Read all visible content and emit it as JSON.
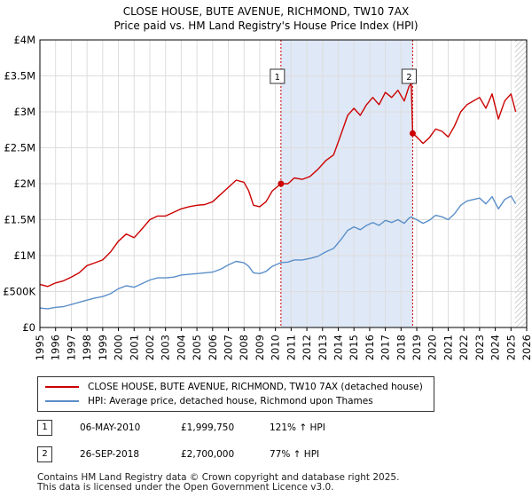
{
  "chart_data": {
    "type": "line",
    "title": "CLOSE HOUSE, BUTE AVENUE, RICHMOND, TW10 7AX",
    "subtitle": "Price paid vs. HM Land Registry's House Price Index (HPI)",
    "xlim": [
      1995,
      2026
    ],
    "ylim": [
      0,
      4000000
    ],
    "x_ticks": [
      "1995",
      "1996",
      "1997",
      "1998",
      "1999",
      "2000",
      "2001",
      "2002",
      "2003",
      "2004",
      "2005",
      "2006",
      "2007",
      "2008",
      "2009",
      "2010",
      "2011",
      "2012",
      "2013",
      "2014",
      "2015",
      "2016",
      "2017",
      "2018",
      "2019",
      "2020",
      "2021",
      "2022",
      "2023",
      "2024",
      "2025",
      "2026"
    ],
    "y_ticks": [
      {
        "value": 0,
        "label": "£0"
      },
      {
        "value": 500000,
        "label": "£500K"
      },
      {
        "value": 1000000,
        "label": "£1M"
      },
      {
        "value": 1500000,
        "label": "£1.5M"
      },
      {
        "value": 2000000,
        "label": "£2M"
      },
      {
        "value": 2500000,
        "label": "£2.5M"
      },
      {
        "value": 3000000,
        "label": "£3M"
      },
      {
        "value": 3500000,
        "label": "£3.5M"
      },
      {
        "value": 4000000,
        "label": "£4M"
      }
    ],
    "grid": true,
    "shaded_period": [
      2010.35,
      2018.74
    ],
    "projection_start": 2025.25,
    "series": [
      {
        "name": "CLOSE HOUSE, BUTE AVENUE, RICHMOND, TW10 7AX (detached house)",
        "color": "#cc0000",
        "x": [
          1995.0,
          1995.5,
          1996.0,
          1996.5,
          1997.0,
          1997.5,
          1998.0,
          1998.5,
          1999.0,
          1999.5,
          2000.0,
          2000.5,
          2001.0,
          2001.5,
          2002.0,
          2002.5,
          2003.0,
          2003.5,
          2004.0,
          2004.5,
          2005.0,
          2005.5,
          2006.0,
          2006.5,
          2007.0,
          2007.5,
          2008.0,
          2008.3,
          2008.6,
          2009.0,
          2009.4,
          2009.8,
          2010.35,
          2010.8,
          2011.2,
          2011.7,
          2012.2,
          2012.7,
          2013.2,
          2013.7,
          2014.2,
          2014.6,
          2015.0,
          2015.4,
          2015.8,
          2016.2,
          2016.6,
          2017.0,
          2017.4,
          2017.8,
          2018.2,
          2018.5,
          2018.65,
          2018.74,
          2019.0,
          2019.4,
          2019.8,
          2020.2,
          2020.6,
          2021.0,
          2021.4,
          2021.8,
          2022.2,
          2022.6,
          2023.0,
          2023.4,
          2023.8,
          2024.2,
          2024.6,
          2025.0,
          2025.3
        ],
        "values": [
          600000,
          570000,
          620000,
          650000,
          700000,
          760000,
          860000,
          900000,
          940000,
          1050000,
          1200000,
          1300000,
          1250000,
          1370000,
          1500000,
          1550000,
          1550000,
          1600000,
          1650000,
          1680000,
          1700000,
          1710000,
          1750000,
          1850000,
          1950000,
          2050000,
          2020000,
          1900000,
          1700000,
          1680000,
          1750000,
          1900000,
          1999750,
          2000000,
          2080000,
          2060000,
          2100000,
          2200000,
          2320000,
          2400000,
          2700000,
          2950000,
          3050000,
          2950000,
          3100000,
          3200000,
          3100000,
          3270000,
          3200000,
          3300000,
          3150000,
          3350000,
          3400000,
          2700000,
          2650000,
          2560000,
          2640000,
          2760000,
          2730000,
          2650000,
          2800000,
          3000000,
          3100000,
          3150000,
          3200000,
          3050000,
          3250000,
          2900000,
          3150000,
          3250000,
          3000000
        ]
      },
      {
        "name": "HPI: Average price, detached house, Richmond upon Thames",
        "color": "#5b8fc9",
        "x": [
          1995.0,
          1995.5,
          1996.0,
          1996.5,
          1997.0,
          1997.5,
          1998.0,
          1998.5,
          1999.0,
          1999.5,
          2000.0,
          2000.5,
          2001.0,
          2001.5,
          2002.0,
          2002.5,
          2003.0,
          2003.5,
          2004.0,
          2004.5,
          2005.0,
          2005.5,
          2006.0,
          2006.5,
          2007.0,
          2007.5,
          2008.0,
          2008.3,
          2008.6,
          2009.0,
          2009.4,
          2009.8,
          2010.35,
          2010.8,
          2011.2,
          2011.7,
          2012.2,
          2012.7,
          2013.2,
          2013.7,
          2014.2,
          2014.6,
          2015.0,
          2015.4,
          2015.8,
          2016.2,
          2016.6,
          2017.0,
          2017.4,
          2017.8,
          2018.2,
          2018.5,
          2018.65,
          2018.74,
          2019.0,
          2019.4,
          2019.8,
          2020.2,
          2020.6,
          2021.0,
          2021.4,
          2021.8,
          2022.2,
          2022.6,
          2023.0,
          2023.4,
          2023.8,
          2024.2,
          2024.6,
          2025.0,
          2025.3
        ],
        "values": [
          270000,
          260000,
          280000,
          290000,
          320000,
          350000,
          380000,
          410000,
          430000,
          470000,
          540000,
          580000,
          560000,
          610000,
          660000,
          690000,
          690000,
          700000,
          730000,
          740000,
          750000,
          760000,
          770000,
          810000,
          870000,
          920000,
          900000,
          850000,
          760000,
          750000,
          780000,
          850000,
          903000,
          910000,
          940000,
          940000,
          960000,
          990000,
          1050000,
          1100000,
          1230000,
          1350000,
          1400000,
          1360000,
          1420000,
          1460000,
          1420000,
          1490000,
          1460000,
          1500000,
          1450000,
          1520000,
          1540000,
          1527000,
          1500000,
          1450000,
          1490000,
          1560000,
          1540000,
          1500000,
          1580000,
          1700000,
          1760000,
          1780000,
          1800000,
          1720000,
          1820000,
          1650000,
          1780000,
          1830000,
          1720000
        ]
      }
    ],
    "sales": [
      {
        "marker": "1",
        "date": "06-MAY-2010",
        "x": 2010.35,
        "price": "£1,999,750",
        "price_value": 1999750,
        "hpi": "121% ↑ HPI"
      },
      {
        "marker": "2",
        "date": "26-SEP-2018",
        "x": 2018.74,
        "price": "£2,700,000",
        "price_value": 2700000,
        "hpi": "77% ↑ HPI"
      }
    ]
  },
  "legend": {
    "property": "CLOSE HOUSE, BUTE AVENUE, RICHMOND, TW10 7AX (detached house)",
    "hpi": "HPI: Average price, detached house, Richmond upon Thames"
  },
  "footer": {
    "line1": "Contains HM Land Registry data © Crown copyright and database right 2025.",
    "line2": "This data is licensed under the Open Government Licence v3.0."
  },
  "colors": {
    "property_line": "#cc0000",
    "hpi_line": "#5b8fc9",
    "shade": "#dfe8f6",
    "grid": "#dddddd",
    "marker_border": "#cc0000"
  }
}
